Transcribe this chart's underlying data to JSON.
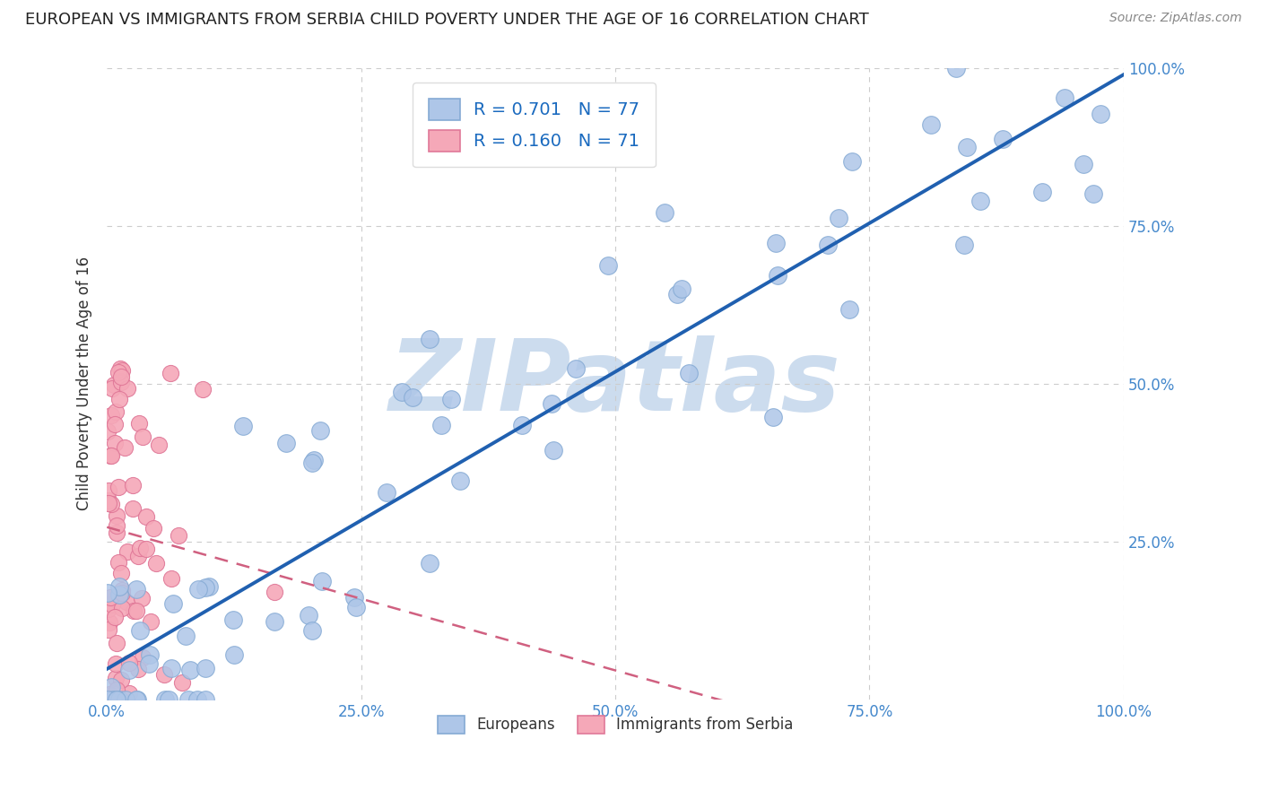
{
  "title": "EUROPEAN VS IMMIGRANTS FROM SERBIA CHILD POVERTY UNDER THE AGE OF 16 CORRELATION CHART",
  "source": "Source: ZipAtlas.com",
  "ylabel": "Child Poverty Under the Age of 16",
  "xlim": [
    0,
    1
  ],
  "ylim": [
    0,
    1
  ],
  "european_color": "#aec6e8",
  "european_edge_color": "#85aad4",
  "serbian_color": "#f5a8b8",
  "serbian_edge_color": "#e07898",
  "regression_blue_color": "#2060b0",
  "regression_pink_color": "#d06080",
  "R_european": 0.701,
  "N_european": 77,
  "R_serbian": 0.16,
  "N_serbian": 71,
  "watermark": "ZIPatlas",
  "watermark_color": "#ccdcee",
  "background_color": "#ffffff",
  "grid_color": "#cccccc",
  "title_color": "#222222",
  "axis_color": "#4488cc",
  "legend_r_color": "#1a6abf"
}
